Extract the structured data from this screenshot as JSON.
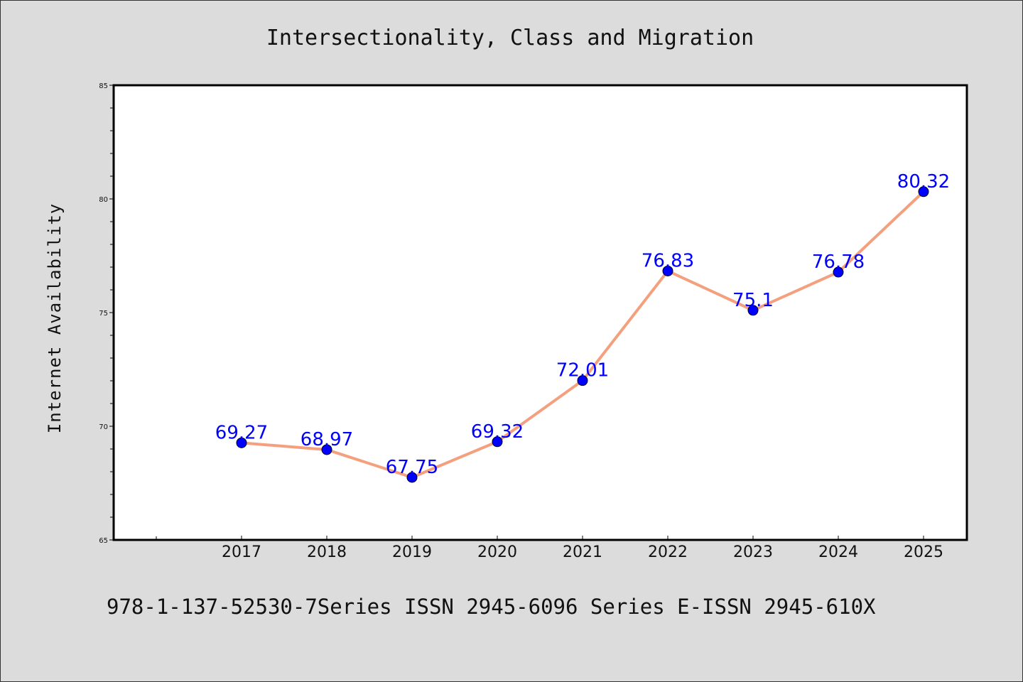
{
  "chart_data": {
    "type": "line",
    "title": "Intersectionality, Class and Migration",
    "xlabel": "",
    "ylabel": "Internet Availability",
    "categories": [
      "2017",
      "2018",
      "2019",
      "2020",
      "2021",
      "2022",
      "2023",
      "2024",
      "2025"
    ],
    "series": [
      {
        "values": [
          69.27,
          68.97,
          67.75,
          69.32,
          72.01,
          76.83,
          75.1,
          76.78,
          80.32
        ],
        "labels": [
          "69.27",
          "68.97",
          "67.75",
          "69.32",
          "72.01",
          "76.83",
          "75.1",
          "76.78",
          "80.32"
        ],
        "line_color": "#f4a07e",
        "marker_color": "#0000ff"
      }
    ],
    "ylim": [
      65,
      85
    ],
    "yticks": [
      "65",
      "70",
      "75",
      "80",
      "85"
    ],
    "grid": false,
    "legend": "none"
  },
  "footer": {
    "text": "978-1-137-52530-7Series ISSN 2945-6096 Series E-ISSN 2945-610X"
  }
}
